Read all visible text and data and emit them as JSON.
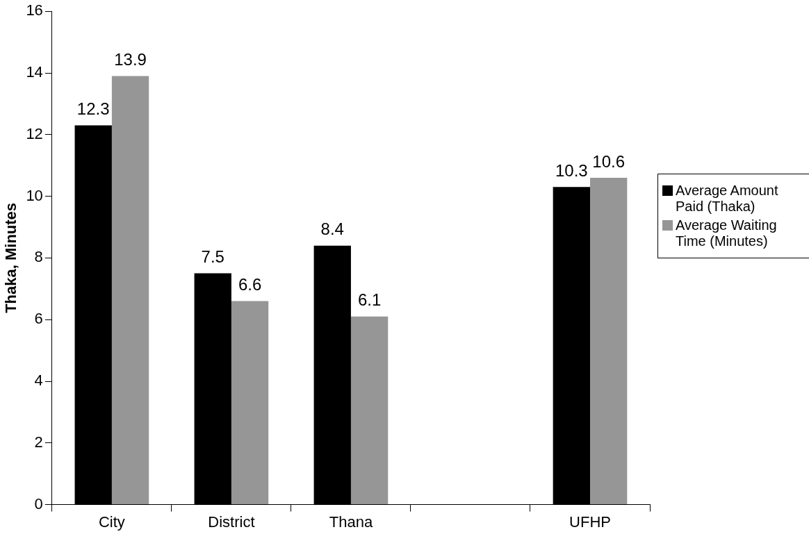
{
  "chart_data": {
    "type": "bar",
    "ylabel": "Thaka, Minutes",
    "categories": [
      "City",
      "District",
      "Thana",
      null,
      "UFHP"
    ],
    "series": [
      {
        "name": "Average Amount Paid (Thaka)",
        "color": "#000000",
        "values": [
          12.3,
          7.5,
          8.4,
          null,
          10.3
        ]
      },
      {
        "name": "Average Waiting Time (Minutes)",
        "color": "#969696",
        "values": [
          13.9,
          6.6,
          6.1,
          null,
          10.6
        ]
      }
    ],
    "ylim": [
      0,
      16
    ],
    "yticks": [
      0,
      2,
      4,
      6,
      8,
      10,
      12,
      14,
      16
    ],
    "data_labels": true,
    "legend": "right"
  }
}
